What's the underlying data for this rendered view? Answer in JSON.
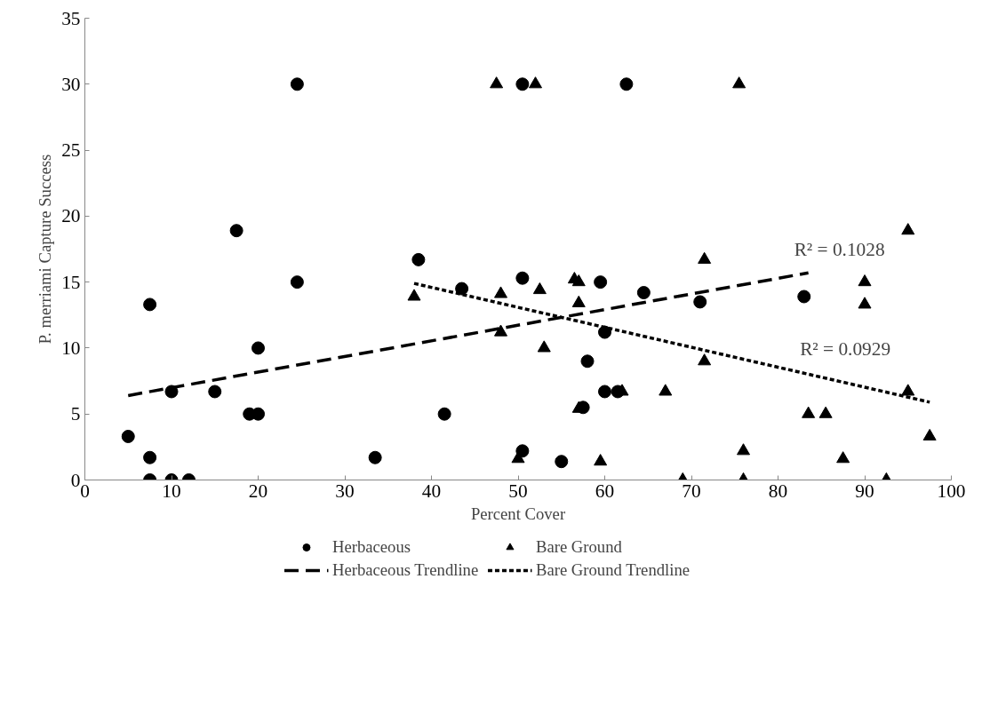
{
  "chart_data": {
    "type": "scatter",
    "xlabel": "Percent Cover",
    "ylabel": "P. merriami Capture Success",
    "xlim": [
      0,
      100
    ],
    "xticks": [
      0,
      10,
      20,
      30,
      40,
      50,
      60,
      70,
      80,
      90,
      100
    ],
    "ylim": [
      0,
      35
    ],
    "yticks": [
      0,
      5,
      10,
      15,
      20,
      25,
      30,
      35
    ],
    "grid": false,
    "legend": "bottom",
    "series": [
      {
        "name": "Herbaceous",
        "color": "#000000",
        "marker": "circle",
        "x": [
          5,
          7.5,
          7.5,
          10,
          12,
          7.5,
          10,
          15,
          19,
          20,
          20,
          17.5,
          24.5,
          24.5,
          33.5,
          38.5,
          41.5,
          43.5,
          50.5,
          50.5,
          50.5,
          55,
          57.5,
          58,
          59.5,
          60,
          60,
          61.5,
          62.5,
          64.5,
          71,
          83
        ],
        "values": [
          3.3,
          1.7,
          0,
          0,
          0,
          13.3,
          6.7,
          6.7,
          5,
          5,
          10,
          18.9,
          15,
          30,
          1.7,
          16.7,
          5,
          14.5,
          15.3,
          30,
          2.2,
          1.4,
          5.5,
          9,
          15,
          11.2,
          6.7,
          6.7,
          30,
          14.2,
          13.5,
          13.9
        ]
      },
      {
        "name": "Bare Ground",
        "color": "#000000",
        "marker": "triangle",
        "x": [
          38,
          47.5,
          48,
          48,
          50,
          52,
          52.5,
          53,
          56.5,
          57,
          57,
          57,
          59.5,
          62,
          67,
          69,
          71.5,
          71.5,
          75.5,
          76,
          76,
          83.5,
          85.5,
          87.5,
          90,
          90,
          92.5,
          95,
          95,
          97.5
        ],
        "values": [
          13.9,
          30,
          14.1,
          11.2,
          1.6,
          30,
          14.4,
          10,
          15.2,
          15,
          13.4,
          5.4,
          1.4,
          6.7,
          6.7,
          0,
          16.7,
          9,
          30,
          2.2,
          0,
          5,
          5,
          1.6,
          15,
          13.3,
          0,
          18.9,
          6.7,
          3.3
        ]
      },
      {
        "name": "Herbaceous Trendline",
        "type": "line",
        "color": "#000000",
        "line_style": "dashed",
        "x": [
          5,
          83.5
        ],
        "values": [
          6.4,
          15.7
        ]
      },
      {
        "name": "Bare Ground Trendline",
        "type": "line",
        "color": "#000000",
        "line_style": "dotted",
        "x": [
          38,
          97.5
        ],
        "values": [
          14.9,
          5.9
        ]
      }
    ],
    "annotations": [
      "R² = 0.1028",
      "R² = 0.0929"
    ]
  }
}
